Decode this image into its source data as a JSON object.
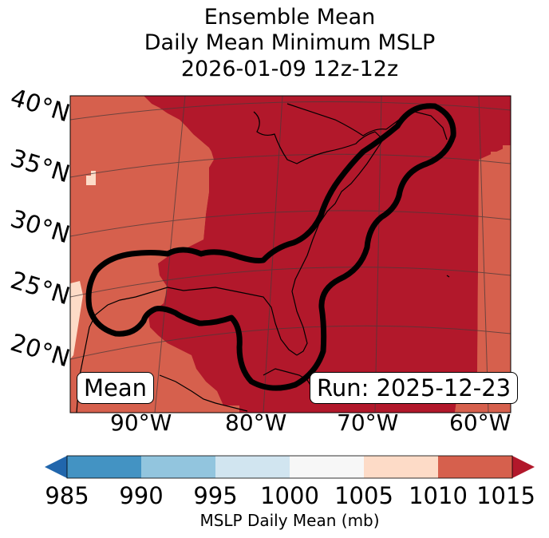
{
  "title": {
    "line1": "Ensemble Mean",
    "line2": "Daily Mean Minimum MSLP",
    "line3": "2026-01-09 12z-12z"
  },
  "map": {
    "lat_labels": [
      "40°N",
      "35°N",
      "30°N",
      "25°N",
      "20°N"
    ],
    "lon_labels": [
      "90°W",
      "80°W",
      "70°W",
      "60°W"
    ],
    "mean_box": "Mean",
    "run_box": "Run: 2025-12-23",
    "colors": {
      "dark_red": "#b2182b",
      "medium_red": "#d6604d",
      "light_peach": "#fddbc7",
      "contour": "#000000",
      "coastline": "#000000",
      "gridline": "#4a3a3a"
    }
  },
  "colorbar": {
    "ticks": [
      "985",
      "990",
      "995",
      "1000",
      "1005",
      "1010",
      "1015"
    ],
    "colors": [
      "#2166ac",
      "#4393c3",
      "#92c5de",
      "#d1e5f0",
      "#f7f7f7",
      "#fddbc7",
      "#d6604d",
      "#b2182b"
    ],
    "label": "MSLP Daily Mean (mb)"
  }
}
